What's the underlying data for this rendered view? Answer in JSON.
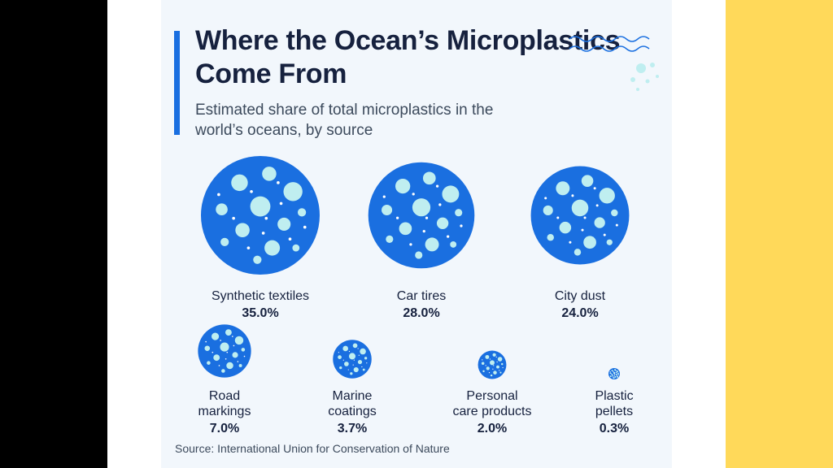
{
  "title": "Where the Ocean’s Microplastics Come From",
  "subtitle": "Estimated share of total microplastics in the world’s oceans, by source",
  "source": "Source: International Union for Conservation of Nature",
  "colors": {
    "bubble": "#1a6fe0",
    "dot": "#bfeef0",
    "accent": "#1a6fe0",
    "left_border": "#000000",
    "right_border": "#ffd95a",
    "background": "#f2f7fc"
  },
  "decoration_icon": "waves-icon",
  "chart_data": {
    "type": "bubble",
    "title": "Where the Ocean’s Microplastics Come From",
    "subtitle": "Estimated share of total microplastics in the world’s oceans, by source",
    "unit": "%",
    "categories": [
      [
        "Synthetic textiles"
      ],
      [
        "Car tires"
      ],
      [
        "City dust"
      ],
      [
        "Road",
        "markings"
      ],
      [
        "Marine",
        "coatings"
      ],
      [
        "Personal",
        "care products"
      ],
      [
        "Plastic",
        "pellets"
      ]
    ],
    "values": [
      35.0,
      28.0,
      24.0,
      7.0,
      3.7,
      2.0,
      0.3
    ],
    "value_labels": [
      "35.0%",
      "28.0%",
      "24.0%",
      "7.0%",
      "3.7%",
      "2.0%",
      "0.3%"
    ]
  }
}
